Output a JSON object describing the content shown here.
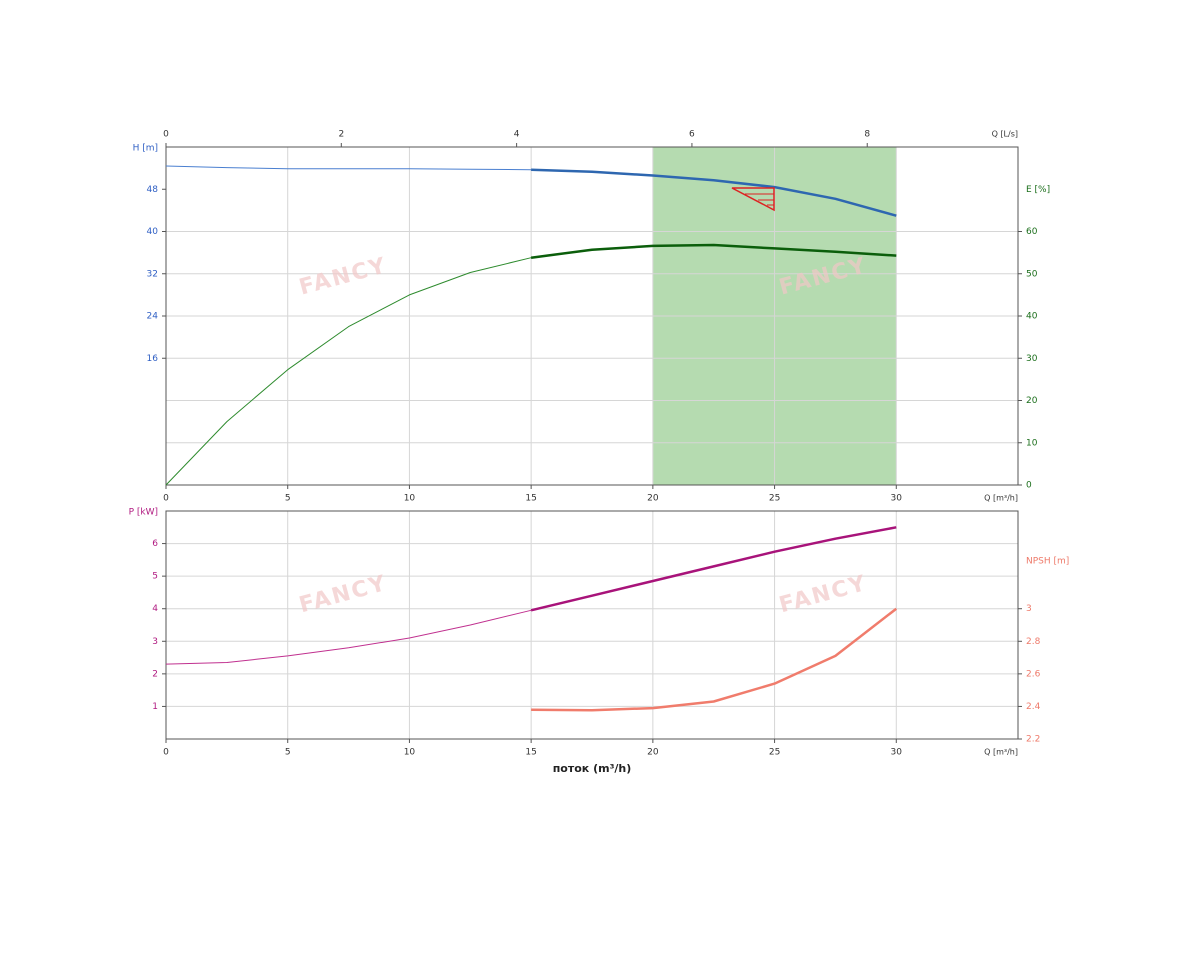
{
  "chart_data": [
    {
      "type": "line",
      "watermark": "FANCY",
      "xunit": "Q [m³/h]",
      "xlim": [
        0,
        35
      ],
      "xticks": [
        0,
        5,
        10,
        15,
        20,
        25,
        30
      ],
      "x2label": "Q [L/s]",
      "x2lim": [
        0,
        9.72
      ],
      "x2ticks": [
        0,
        2,
        4,
        6,
        8
      ],
      "ylabel": "H [m]",
      "ylim": [
        -8,
        56
      ],
      "yticks": [
        16,
        24,
        32,
        40,
        48
      ],
      "ycolor": "#2f5fc4",
      "y2label": "E [%]",
      "y2lim": [
        0,
        80
      ],
      "y2ticks": [
        0,
        10,
        20,
        30,
        40,
        50,
        60
      ],
      "y2color": "#1b6e1b",
      "grid": true,
      "grid_axis": "y2",
      "shaded_range": [
        20,
        30
      ],
      "shaded_color": "#a8d5a2",
      "series": [
        {
          "color": "#4a7fd0",
          "width": 1,
          "x": [
            0,
            2.5,
            5,
            7.5,
            10,
            12.5,
            15
          ],
          "values": [
            52.4,
            52.1,
            51.9,
            51.9,
            51.9,
            51.8,
            51.7
          ]
        },
        {
          "color": "#2e67b0",
          "width": 2.5,
          "x": [
            15,
            17.5,
            20,
            22.5,
            25,
            27.5,
            30
          ],
          "values": [
            51.7,
            51.3,
            50.6,
            49.7,
            48.4,
            46.2,
            43.0
          ]
        },
        {
          "color": "#2e8b2e",
          "width": 1,
          "axis": "y2",
          "x": [
            0,
            2.5,
            5,
            7.5,
            10,
            12.5,
            15
          ],
          "values": [
            0,
            15,
            27.3,
            37.5,
            45,
            50.3,
            53.8
          ]
        },
        {
          "color": "#0b5e0b",
          "width": 2.5,
          "axis": "y2",
          "x": [
            15,
            17.5,
            20,
            22.5,
            25,
            27.5,
            30
          ],
          "values": [
            53.8,
            55.7,
            56.6,
            56.8,
            56.0,
            55.2,
            54.3
          ]
        }
      ]
    },
    {
      "type": "line",
      "watermark": "FANCY",
      "xunit": "Q [m³/h]",
      "xlabel": "поток (m³/h)",
      "xlim": [
        0,
        35
      ],
      "xticks": [
        0,
        5,
        10,
        15,
        20,
        25,
        30
      ],
      "ylabel": "P [kW]",
      "ylim": [
        0,
        7
      ],
      "yticks": [
        1,
        2,
        3,
        4,
        5,
        6
      ],
      "ycolor": "#b01a80",
      "y2label": "NPSH [m]",
      "y2lim": [
        2.2,
        3.6
      ],
      "y2ticks": [
        2.2,
        2.4,
        2.6,
        2.8,
        3
      ],
      "y2color": "#ee7a6a",
      "grid": true,
      "grid_axis": "y",
      "series": [
        {
          "color": "#c0308f",
          "width": 1,
          "x": [
            0,
            2.5,
            5,
            7.5,
            10,
            12.5,
            15
          ],
          "values": [
            2.3,
            2.35,
            2.55,
            2.8,
            3.1,
            3.5,
            3.95
          ]
        },
        {
          "color": "#a8137a",
          "width": 2.5,
          "x": [
            15,
            17.5,
            20,
            22.5,
            25,
            27.5,
            30
          ],
          "values": [
            3.95,
            4.4,
            4.85,
            5.3,
            5.75,
            6.15,
            6.5
          ]
        },
        {
          "color": "#f07c6c",
          "width": 2.5,
          "axis": "y2",
          "x": [
            15,
            17.5,
            20,
            22.5,
            25,
            27.5,
            30
          ],
          "values": [
            2.379,
            2.377,
            2.39,
            2.43,
            2.54,
            2.71,
            3.0
          ]
        }
      ]
    }
  ]
}
